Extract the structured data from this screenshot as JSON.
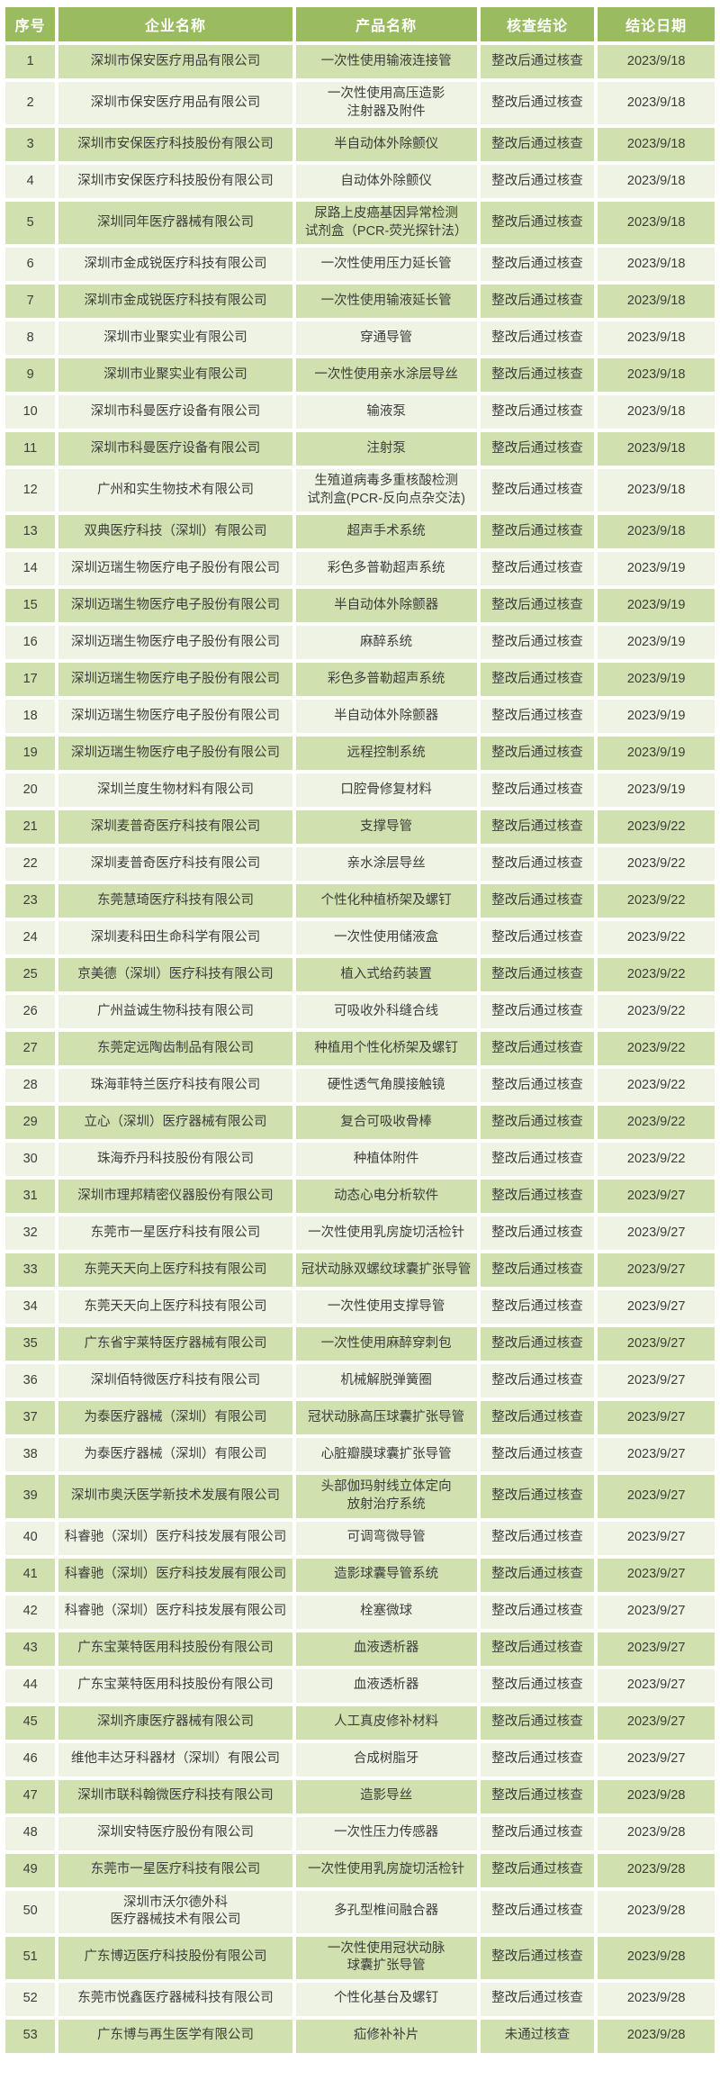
{
  "colors": {
    "header_bg": "#9abb60",
    "header_text": "#ffffff",
    "row_odd_bg": "#d0e0ae",
    "row_even_bg": "#eff3e3",
    "cell_text": "#3d3d3d"
  },
  "table": {
    "columns": [
      {
        "key": "index",
        "label": "序号"
      },
      {
        "key": "company",
        "label": "企业名称"
      },
      {
        "key": "product",
        "label": "产品名称"
      },
      {
        "key": "conclusion",
        "label": "核查结论"
      },
      {
        "key": "date",
        "label": "结论日期"
      }
    ],
    "rows": [
      {
        "index": "1",
        "company": "深圳市保安医疗用品有限公司",
        "product": "一次性使用输液连接管",
        "conclusion": "整改后通过核查",
        "date": "2023/9/18"
      },
      {
        "index": "2",
        "company": "深圳市保安医疗用品有限公司",
        "product": "一次性使用高压造影\n注射器及附件",
        "conclusion": "整改后通过核查",
        "date": "2023/9/18"
      },
      {
        "index": "3",
        "company": "深圳市安保医疗科技股份有限公司",
        "product": "半自动体外除颤仪",
        "conclusion": "整改后通过核查",
        "date": "2023/9/18"
      },
      {
        "index": "4",
        "company": "深圳市安保医疗科技股份有限公司",
        "product": "自动体外除颤仪",
        "conclusion": "整改后通过核查",
        "date": "2023/9/18"
      },
      {
        "index": "5",
        "company": "深圳同年医疗器械有限公司",
        "product": "尿路上皮癌基因异常检测\n试剂盒（PCR-荧光探针法）",
        "conclusion": "整改后通过核查",
        "date": "2023/9/18"
      },
      {
        "index": "6",
        "company": "深圳市金成锐医疗科技有限公司",
        "product": "一次性使用压力延长管",
        "conclusion": "整改后通过核查",
        "date": "2023/9/18"
      },
      {
        "index": "7",
        "company": "深圳市金成锐医疗科技有限公司",
        "product": "一次性使用输液延长管",
        "conclusion": "整改后通过核查",
        "date": "2023/9/18"
      },
      {
        "index": "8",
        "company": "深圳市业聚实业有限公司",
        "product": "穿通导管",
        "conclusion": "整改后通过核查",
        "date": "2023/9/18"
      },
      {
        "index": "9",
        "company": "深圳市业聚实业有限公司",
        "product": "一次性使用亲水涂层导丝",
        "conclusion": "整改后通过核查",
        "date": "2023/9/18"
      },
      {
        "index": "10",
        "company": "深圳市科曼医疗设备有限公司",
        "product": "输液泵",
        "conclusion": "整改后通过核查",
        "date": "2023/9/18"
      },
      {
        "index": "11",
        "company": "深圳市科曼医疗设备有限公司",
        "product": "注射泵",
        "conclusion": "整改后通过核查",
        "date": "2023/9/18"
      },
      {
        "index": "12",
        "company": "广州和实生物技术有限公司",
        "product": "生殖道病毒多重核酸检测\n试剂盒(PCR-反向点杂交法)",
        "conclusion": "整改后通过核查",
        "date": "2023/9/18"
      },
      {
        "index": "13",
        "company": "双典医疗科技（深圳）有限公司",
        "product": "超声手术系统",
        "conclusion": "整改后通过核查",
        "date": "2023/9/18"
      },
      {
        "index": "14",
        "company": "深圳迈瑞生物医疗电子股份有限公司",
        "product": "彩色多普勒超声系统",
        "conclusion": "整改后通过核查",
        "date": "2023/9/19"
      },
      {
        "index": "15",
        "company": "深圳迈瑞生物医疗电子股份有限公司",
        "product": "半自动体外除颤器",
        "conclusion": "整改后通过核查",
        "date": "2023/9/19"
      },
      {
        "index": "16",
        "company": "深圳迈瑞生物医疗电子股份有限公司",
        "product": "麻醉系统",
        "conclusion": "整改后通过核查",
        "date": "2023/9/19"
      },
      {
        "index": "17",
        "company": "深圳迈瑞生物医疗电子股份有限公司",
        "product": "彩色多普勒超声系统",
        "conclusion": "整改后通过核查",
        "date": "2023/9/19"
      },
      {
        "index": "18",
        "company": "深圳迈瑞生物医疗电子股份有限公司",
        "product": "半自动体外除颤器",
        "conclusion": "整改后通过核查",
        "date": "2023/9/19"
      },
      {
        "index": "19",
        "company": "深圳迈瑞生物医疗电子股份有限公司",
        "product": "远程控制系统",
        "conclusion": "整改后通过核查",
        "date": "2023/9/19"
      },
      {
        "index": "20",
        "company": "深圳兰度生物材料有限公司",
        "product": "口腔骨修复材料",
        "conclusion": "整改后通过核查",
        "date": "2023/9/19"
      },
      {
        "index": "21",
        "company": "深圳麦普奇医疗科技有限公司",
        "product": "支撑导管",
        "conclusion": "整改后通过核查",
        "date": "2023/9/22"
      },
      {
        "index": "22",
        "company": "深圳麦普奇医疗科技有限公司",
        "product": "亲水涂层导丝",
        "conclusion": "整改后通过核查",
        "date": "2023/9/22"
      },
      {
        "index": "23",
        "company": "东莞慧琦医疗科技有限公司",
        "product": "个性化种植桥架及螺钉",
        "conclusion": "整改后通过核查",
        "date": "2023/9/22"
      },
      {
        "index": "24",
        "company": "深圳麦科田生命科学有限公司",
        "product": "一次性使用储液盒",
        "conclusion": "整改后通过核查",
        "date": "2023/9/22"
      },
      {
        "index": "25",
        "company": "京美德（深圳）医疗科技有限公司",
        "product": "植入式给药装置",
        "conclusion": "整改后通过核查",
        "date": "2023/9/22"
      },
      {
        "index": "26",
        "company": "广州益诚生物科技有限公司",
        "product": "可吸收外科缝合线",
        "conclusion": "整改后通过核查",
        "date": "2023/9/22"
      },
      {
        "index": "27",
        "company": "东莞定远陶齿制品有限公司",
        "product": "种植用个性化桥架及螺钉",
        "conclusion": "整改后通过核查",
        "date": "2023/9/22"
      },
      {
        "index": "28",
        "company": "珠海菲特兰医疗科技有限公司",
        "product": "硬性透气角膜接触镜",
        "conclusion": "整改后通过核查",
        "date": "2023/9/22"
      },
      {
        "index": "29",
        "company": "立心（深圳）医疗器械有限公司",
        "product": "复合可吸收骨棒",
        "conclusion": "整改后通过核查",
        "date": "2023/9/22"
      },
      {
        "index": "30",
        "company": "珠海乔丹科技股份有限公司",
        "product": "种植体附件",
        "conclusion": "整改后通过核查",
        "date": "2023/9/22"
      },
      {
        "index": "31",
        "company": "深圳市理邦精密仪器股份有限公司",
        "product": "动态心电分析软件",
        "conclusion": "整改后通过核查",
        "date": "2023/9/27"
      },
      {
        "index": "32",
        "company": "东莞市一星医疗科技有限公司",
        "product": "一次性使用乳房旋切活检针",
        "conclusion": "整改后通过核查",
        "date": "2023/9/27"
      },
      {
        "index": "33",
        "company": "东莞天天向上医疗科技有限公司",
        "product": "冠状动脉双螺纹球囊扩张导管",
        "conclusion": "整改后通过核查",
        "date": "2023/9/27"
      },
      {
        "index": "34",
        "company": "东莞天天向上医疗科技有限公司",
        "product": "一次性使用支撑导管",
        "conclusion": "整改后通过核查",
        "date": "2023/9/27"
      },
      {
        "index": "35",
        "company": "广东省宇莱特医疗器械有限公司",
        "product": "一次性使用麻醉穿刺包",
        "conclusion": "整改后通过核查",
        "date": "2023/9/27"
      },
      {
        "index": "36",
        "company": "深圳佰特微医疗科技有限公司",
        "product": "机械解脱弹簧圈",
        "conclusion": "整改后通过核查",
        "date": "2023/9/27"
      },
      {
        "index": "37",
        "company": "为泰医疗器械（深圳）有限公司",
        "product": "冠状动脉高压球囊扩张导管",
        "conclusion": "整改后通过核查",
        "date": "2023/9/27"
      },
      {
        "index": "38",
        "company": "为泰医疗器械（深圳）有限公司",
        "product": "心脏瓣膜球囊扩张导管",
        "conclusion": "整改后通过核查",
        "date": "2023/9/27"
      },
      {
        "index": "39",
        "company": "深圳市奥沃医学新技术发展有限公司",
        "product": "头部伽玛射线立体定向\n放射治疗系统",
        "conclusion": "整改后通过核查",
        "date": "2023/9/27"
      },
      {
        "index": "40",
        "company": "科睿驰（深圳）医疗科技发展有限公司",
        "product": "可调弯微导管",
        "conclusion": "整改后通过核查",
        "date": "2023/9/27"
      },
      {
        "index": "41",
        "company": "科睿驰（深圳）医疗科技发展有限公司",
        "product": "造影球囊导管系统",
        "conclusion": "整改后通过核查",
        "date": "2023/9/27"
      },
      {
        "index": "42",
        "company": "科睿驰（深圳）医疗科技发展有限公司",
        "product": "栓塞微球",
        "conclusion": "整改后通过核查",
        "date": "2023/9/27"
      },
      {
        "index": "43",
        "company": "广东宝莱特医用科技股份有限公司",
        "product": "血液透析器",
        "conclusion": "整改后通过核查",
        "date": "2023/9/27"
      },
      {
        "index": "44",
        "company": "广东宝莱特医用科技股份有限公司",
        "product": "血液透析器",
        "conclusion": "整改后通过核查",
        "date": "2023/9/27"
      },
      {
        "index": "45",
        "company": "深圳齐康医疗器械有限公司",
        "product": "人工真皮修补材料",
        "conclusion": "整改后通过核查",
        "date": "2023/9/27"
      },
      {
        "index": "46",
        "company": "维他丰达牙科器材（深圳）有限公司",
        "product": "合成树脂牙",
        "conclusion": "整改后通过核查",
        "date": "2023/9/27"
      },
      {
        "index": "47",
        "company": "深圳市联科翰微医疗科技有限公司",
        "product": "造影导丝",
        "conclusion": "整改后通过核查",
        "date": "2023/9/28"
      },
      {
        "index": "48",
        "company": "深圳安特医疗股份有限公司",
        "product": "一次性压力传感器",
        "conclusion": "整改后通过核查",
        "date": "2023/9/28"
      },
      {
        "index": "49",
        "company": "东莞市一星医疗科技有限公司",
        "product": "一次性使用乳房旋切活检针",
        "conclusion": "整改后通过核查",
        "date": "2023/9/28"
      },
      {
        "index": "50",
        "company": "深圳市沃尔德外科\n医疗器械技术有限公司",
        "product": "多孔型椎间融合器",
        "conclusion": "整改后通过核查",
        "date": "2023/9/28"
      },
      {
        "index": "51",
        "company": "广东博迈医疗科技股份有限公司",
        "product": "一次性使用冠状动脉\n球囊扩张导管",
        "conclusion": "整改后通过核查",
        "date": "2023/9/28"
      },
      {
        "index": "52",
        "company": "东莞市悦鑫医疗器械科技有限公司",
        "product": "个性化基台及螺钉",
        "conclusion": "整改后通过核查",
        "date": "2023/9/28"
      },
      {
        "index": "53",
        "company": "广东博与再生医学有限公司",
        "product": "疝修补补片",
        "conclusion": "未通过核查",
        "date": "2023/9/28"
      }
    ]
  }
}
